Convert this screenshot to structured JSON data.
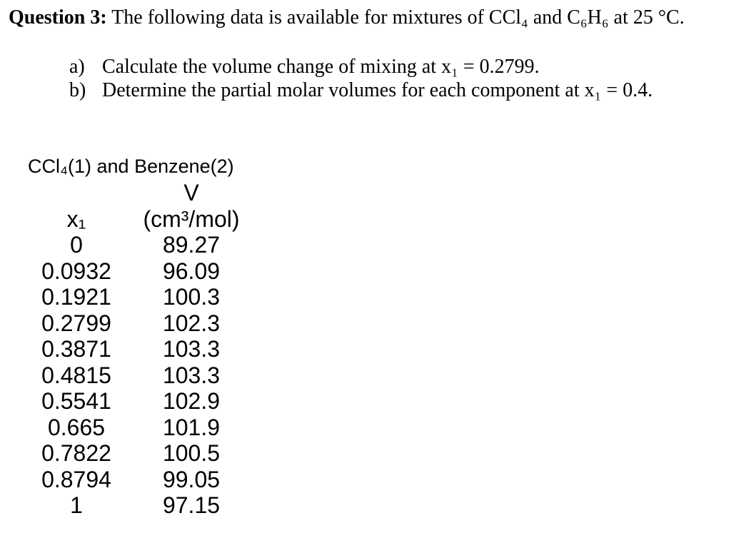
{
  "page": {
    "background_color": "#ffffff",
    "text_color": "#000000"
  },
  "question": {
    "label": "Question 3:",
    "text": "The following data is available for mixtures of CCl₄ and C₆H₆ at 25 °C."
  },
  "tasks": [
    {
      "marker": "a)",
      "text": "Calculate the volume change of mixing at x₁ = 0.2799."
    },
    {
      "marker": "b)",
      "text": "Determine the partial molar volumes for each component at x₁ = 0.4."
    }
  ],
  "data_table": {
    "title": "CCl₄(1) and Benzene(2)",
    "col2_top_header": "V",
    "col1_header": "x₁",
    "col2_header": "(cm³/mol)",
    "rows": [
      {
        "x1": "0",
        "v": "89.27"
      },
      {
        "x1": "0.0932",
        "v": "96.09"
      },
      {
        "x1": "0.1921",
        "v": "100.3"
      },
      {
        "x1": "0.2799",
        "v": "102.3"
      },
      {
        "x1": "0.3871",
        "v": "103.3"
      },
      {
        "x1": "0.4815",
        "v": "103.3"
      },
      {
        "x1": "0.5541",
        "v": "102.9"
      },
      {
        "x1": "0.665",
        "v": "101.9"
      },
      {
        "x1": "0.7822",
        "v": "100.5"
      },
      {
        "x1": "0.8794",
        "v": "99.05"
      },
      {
        "x1": "1",
        "v": "97.15"
      }
    ]
  }
}
